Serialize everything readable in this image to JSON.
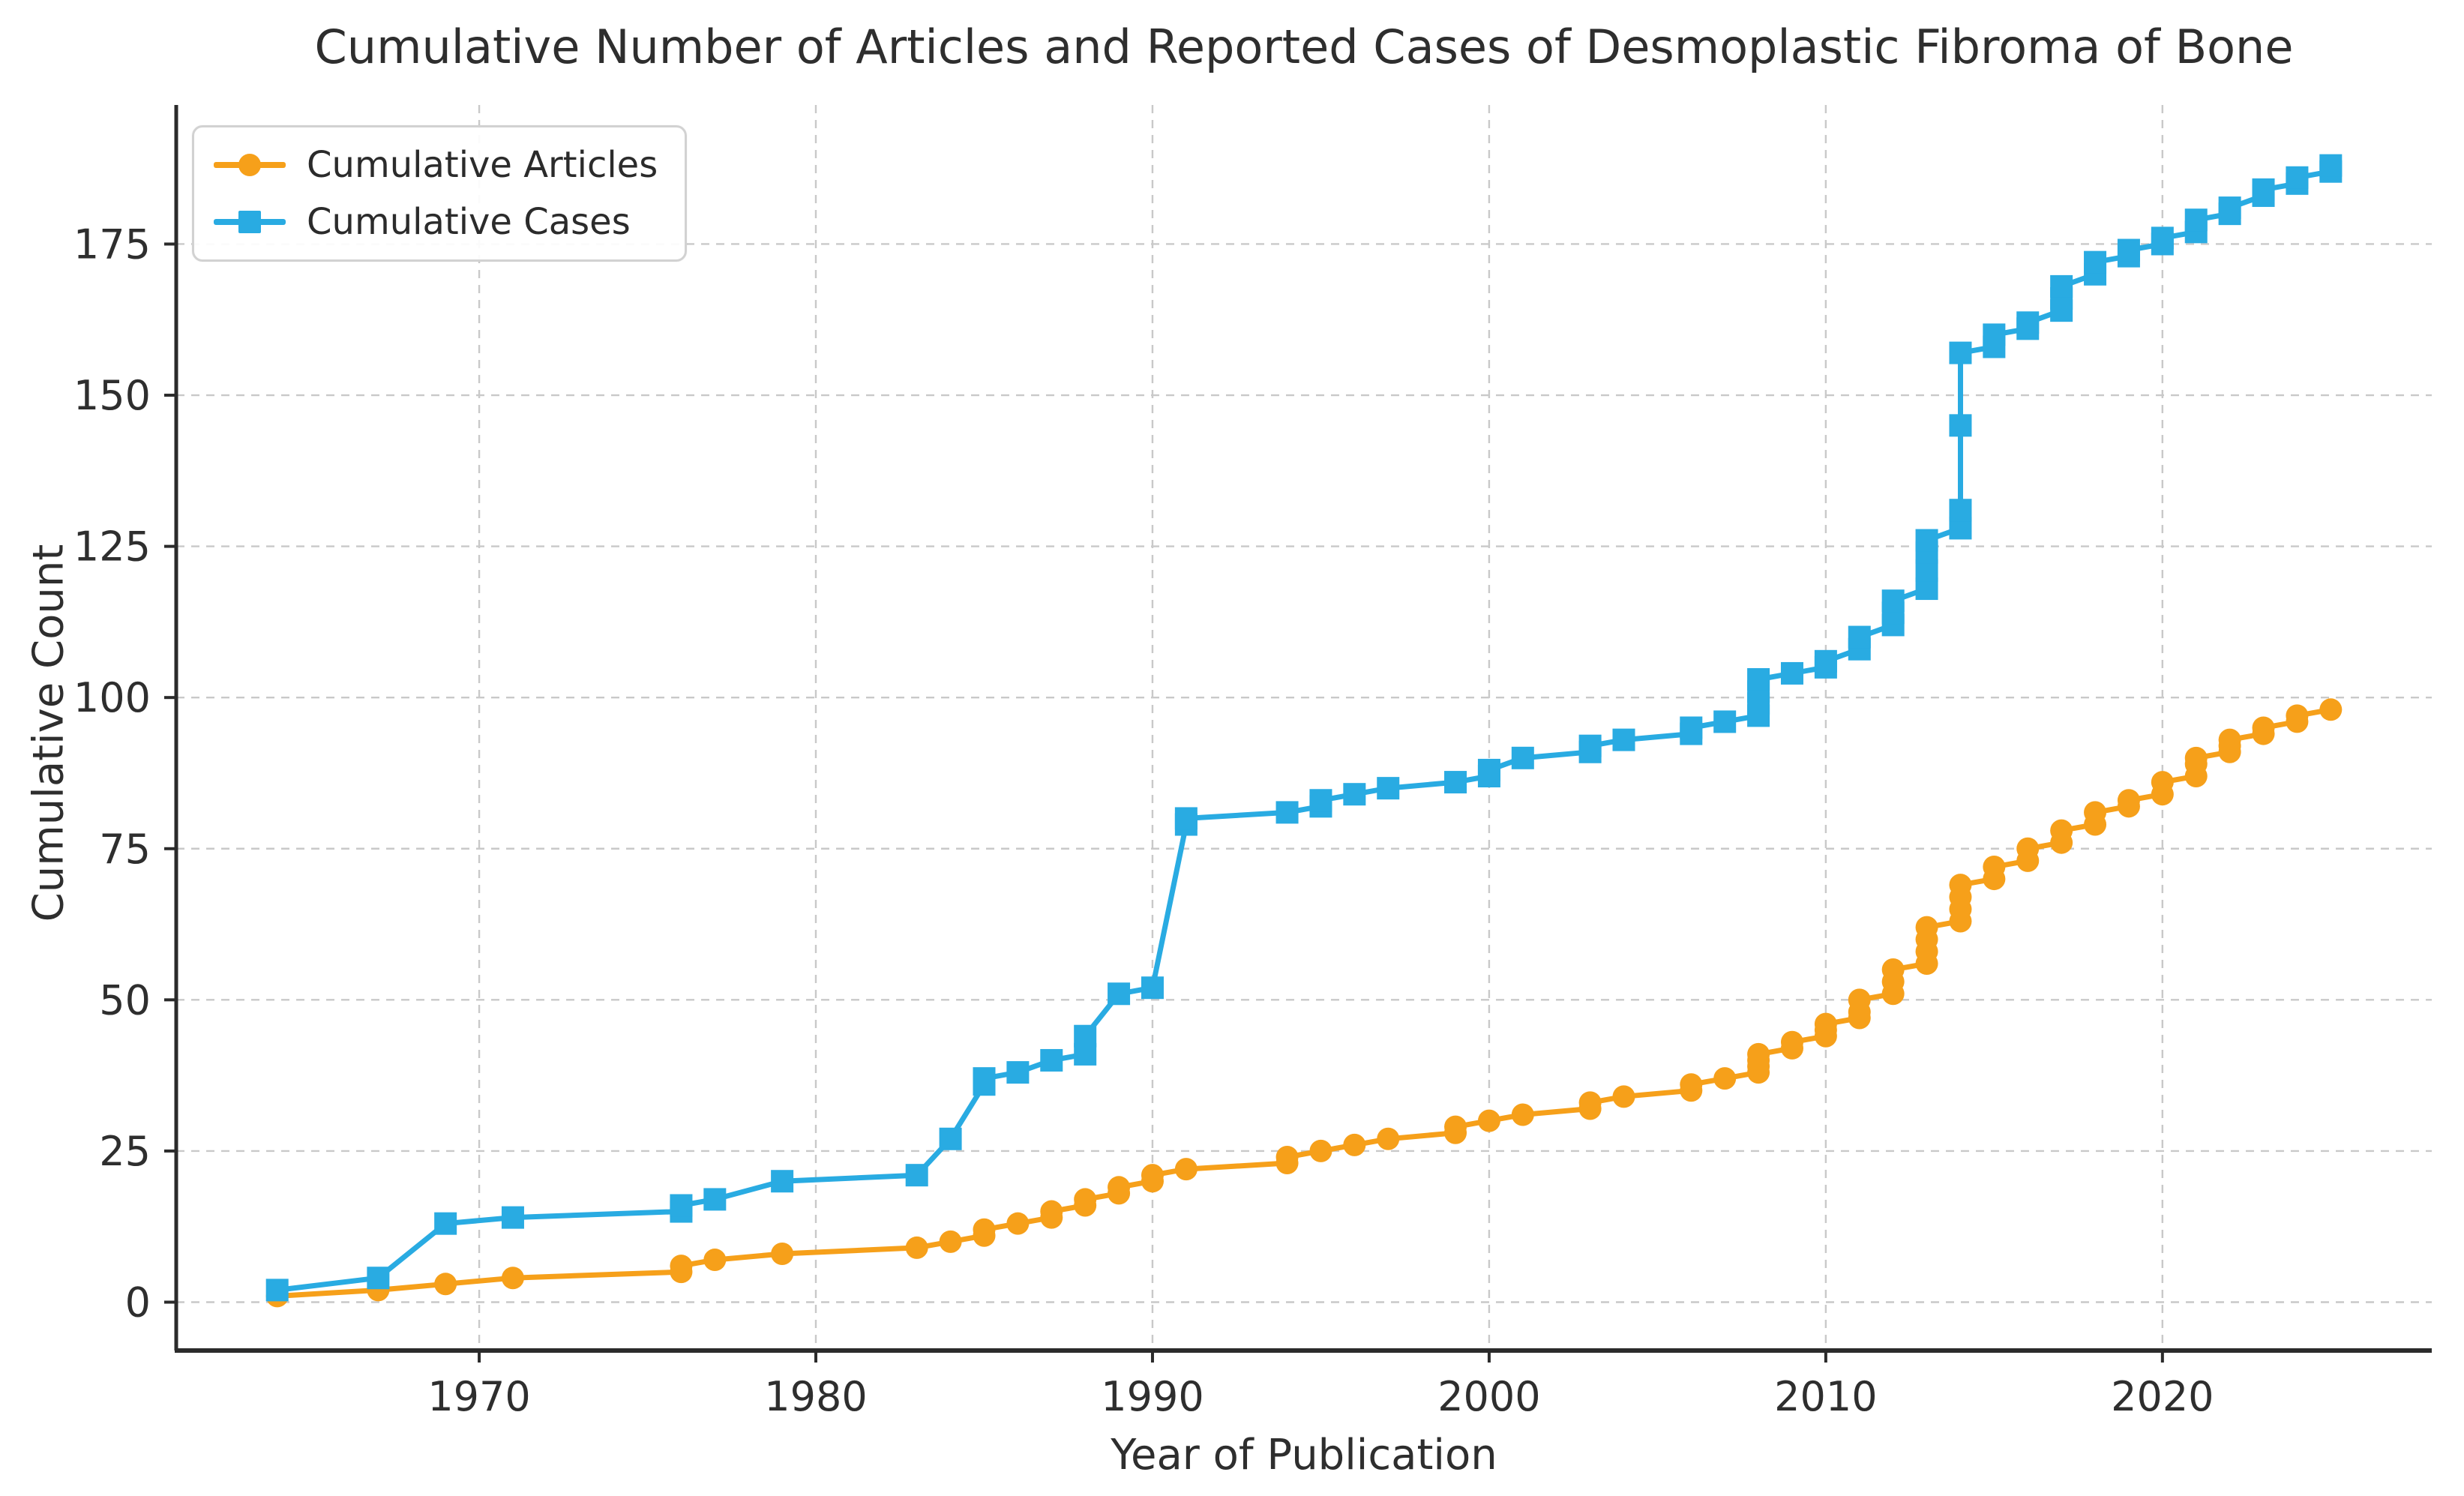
{
  "title": "Cumulative Number of Articles and Reported Cases of Desmoplastic Fibroma of Bone",
  "chart_data": {
    "type": "line",
    "title": "Cumulative Number of Articles and Reported Cases of Desmoplastic Fibroma of Bone",
    "xlabel": "Year of Publication",
    "ylabel": "Cumulative Count",
    "x_ticks": [
      1970,
      1980,
      1990,
      2000,
      2010,
      2020
    ],
    "y_ticks": [
      0,
      25,
      50,
      75,
      100,
      125,
      150,
      175
    ],
    "xlim": [
      1961,
      2028
    ],
    "ylim": [
      -8,
      198
    ],
    "grid": true,
    "grid_style": "dashed",
    "legend_position": "upper-left",
    "background": "#ffffff",
    "grid_color": "#c9c9c9",
    "spine_color": "#2b2b2b",
    "series": [
      {
        "name": "Cumulative Articles",
        "marker": "circle",
        "color": "#f6a01a",
        "points": [
          [
            1964,
            1
          ],
          [
            1967,
            2
          ],
          [
            1969,
            3
          ],
          [
            1971,
            4
          ],
          [
            1976,
            5
          ],
          [
            1976,
            6
          ],
          [
            1977,
            7
          ],
          [
            1979,
            8
          ],
          [
            1983,
            9
          ],
          [
            1984,
            10
          ],
          [
            1985,
            11
          ],
          [
            1985,
            12
          ],
          [
            1986,
            13
          ],
          [
            1987,
            14
          ],
          [
            1987,
            15
          ],
          [
            1988,
            16
          ],
          [
            1988,
            17
          ],
          [
            1989,
            18
          ],
          [
            1989,
            19
          ],
          [
            1990,
            20
          ],
          [
            1990,
            21
          ],
          [
            1991,
            22
          ],
          [
            1994,
            23
          ],
          [
            1994,
            24
          ],
          [
            1995,
            25
          ],
          [
            1996,
            26
          ],
          [
            1997,
            27
          ],
          [
            1999,
            28
          ],
          [
            1999,
            29
          ],
          [
            2000,
            30
          ],
          [
            2001,
            31
          ],
          [
            2003,
            32
          ],
          [
            2003,
            33
          ],
          [
            2004,
            34
          ],
          [
            2006,
            35
          ],
          [
            2006,
            36
          ],
          [
            2007,
            37
          ],
          [
            2008,
            38
          ],
          [
            2008,
            39
          ],
          [
            2008,
            40
          ],
          [
            2008,
            41
          ],
          [
            2009,
            42
          ],
          [
            2009,
            43
          ],
          [
            2010,
            44
          ],
          [
            2010,
            45
          ],
          [
            2010,
            46
          ],
          [
            2011,
            47
          ],
          [
            2011,
            48
          ],
          [
            2011,
            50
          ],
          [
            2012,
            51
          ],
          [
            2012,
            53
          ],
          [
            2012,
            55
          ],
          [
            2013,
            56
          ],
          [
            2013,
            58
          ],
          [
            2013,
            60
          ],
          [
            2013,
            62
          ],
          [
            2014,
            63
          ],
          [
            2014,
            65
          ],
          [
            2014,
            67
          ],
          [
            2014,
            69
          ],
          [
            2015,
            70
          ],
          [
            2015,
            72
          ],
          [
            2016,
            73
          ],
          [
            2016,
            75
          ],
          [
            2017,
            76
          ],
          [
            2017,
            78
          ],
          [
            2018,
            79
          ],
          [
            2018,
            81
          ],
          [
            2019,
            82
          ],
          [
            2019,
            83
          ],
          [
            2020,
            84
          ],
          [
            2020,
            86
          ],
          [
            2021,
            87
          ],
          [
            2021,
            89
          ],
          [
            2021,
            90
          ],
          [
            2022,
            91
          ],
          [
            2022,
            92
          ],
          [
            2022,
            93
          ],
          [
            2023,
            94
          ],
          [
            2023,
            95
          ],
          [
            2024,
            96
          ],
          [
            2024,
            97
          ],
          [
            2025,
            98
          ]
        ]
      },
      {
        "name": "Cumulative Cases",
        "marker": "square",
        "color": "#29abe2",
        "points": [
          [
            1964,
            2
          ],
          [
            1967,
            4
          ],
          [
            1969,
            13
          ],
          [
            1971,
            14
          ],
          [
            1976,
            15
          ],
          [
            1976,
            16
          ],
          [
            1977,
            17
          ],
          [
            1979,
            20
          ],
          [
            1983,
            21
          ],
          [
            1984,
            27
          ],
          [
            1985,
            36
          ],
          [
            1985,
            37
          ],
          [
            1986,
            38
          ],
          [
            1987,
            40
          ],
          [
            1988,
            41
          ],
          [
            1988,
            44
          ],
          [
            1989,
            51
          ],
          [
            1990,
            52
          ],
          [
            1991,
            79
          ],
          [
            1991,
            80
          ],
          [
            1994,
            81
          ],
          [
            1995,
            82
          ],
          [
            1995,
            83
          ],
          [
            1996,
            84
          ],
          [
            1997,
            85
          ],
          [
            1999,
            86
          ],
          [
            2000,
            87
          ],
          [
            2000,
            88
          ],
          [
            2001,
            90
          ],
          [
            2003,
            91
          ],
          [
            2003,
            92
          ],
          [
            2004,
            93
          ],
          [
            2006,
            94
          ],
          [
            2006,
            95
          ],
          [
            2007,
            96
          ],
          [
            2008,
            97
          ],
          [
            2008,
            99
          ],
          [
            2008,
            101
          ],
          [
            2008,
            103
          ],
          [
            2009,
            104
          ],
          [
            2010,
            105
          ],
          [
            2010,
            106
          ],
          [
            2011,
            108
          ],
          [
            2011,
            110
          ],
          [
            2012,
            112
          ],
          [
            2012,
            114
          ],
          [
            2012,
            116
          ],
          [
            2013,
            118
          ],
          [
            2013,
            121
          ],
          [
            2013,
            124
          ],
          [
            2013,
            126
          ],
          [
            2014,
            128
          ],
          [
            2014,
            131
          ],
          [
            2014,
            145
          ],
          [
            2014,
            157
          ],
          [
            2015,
            158
          ],
          [
            2015,
            160
          ],
          [
            2016,
            161
          ],
          [
            2016,
            162
          ],
          [
            2017,
            164
          ],
          [
            2017,
            166
          ],
          [
            2017,
            168
          ],
          [
            2018,
            170
          ],
          [
            2018,
            172
          ],
          [
            2019,
            173
          ],
          [
            2019,
            174
          ],
          [
            2020,
            175
          ],
          [
            2020,
            176
          ],
          [
            2021,
            177
          ],
          [
            2021,
            179
          ],
          [
            2022,
            180
          ],
          [
            2022,
            181
          ],
          [
            2023,
            183
          ],
          [
            2023,
            184
          ],
          [
            2024,
            185
          ],
          [
            2024,
            186
          ],
          [
            2025,
            187
          ],
          [
            2025,
            188
          ]
        ]
      }
    ]
  }
}
